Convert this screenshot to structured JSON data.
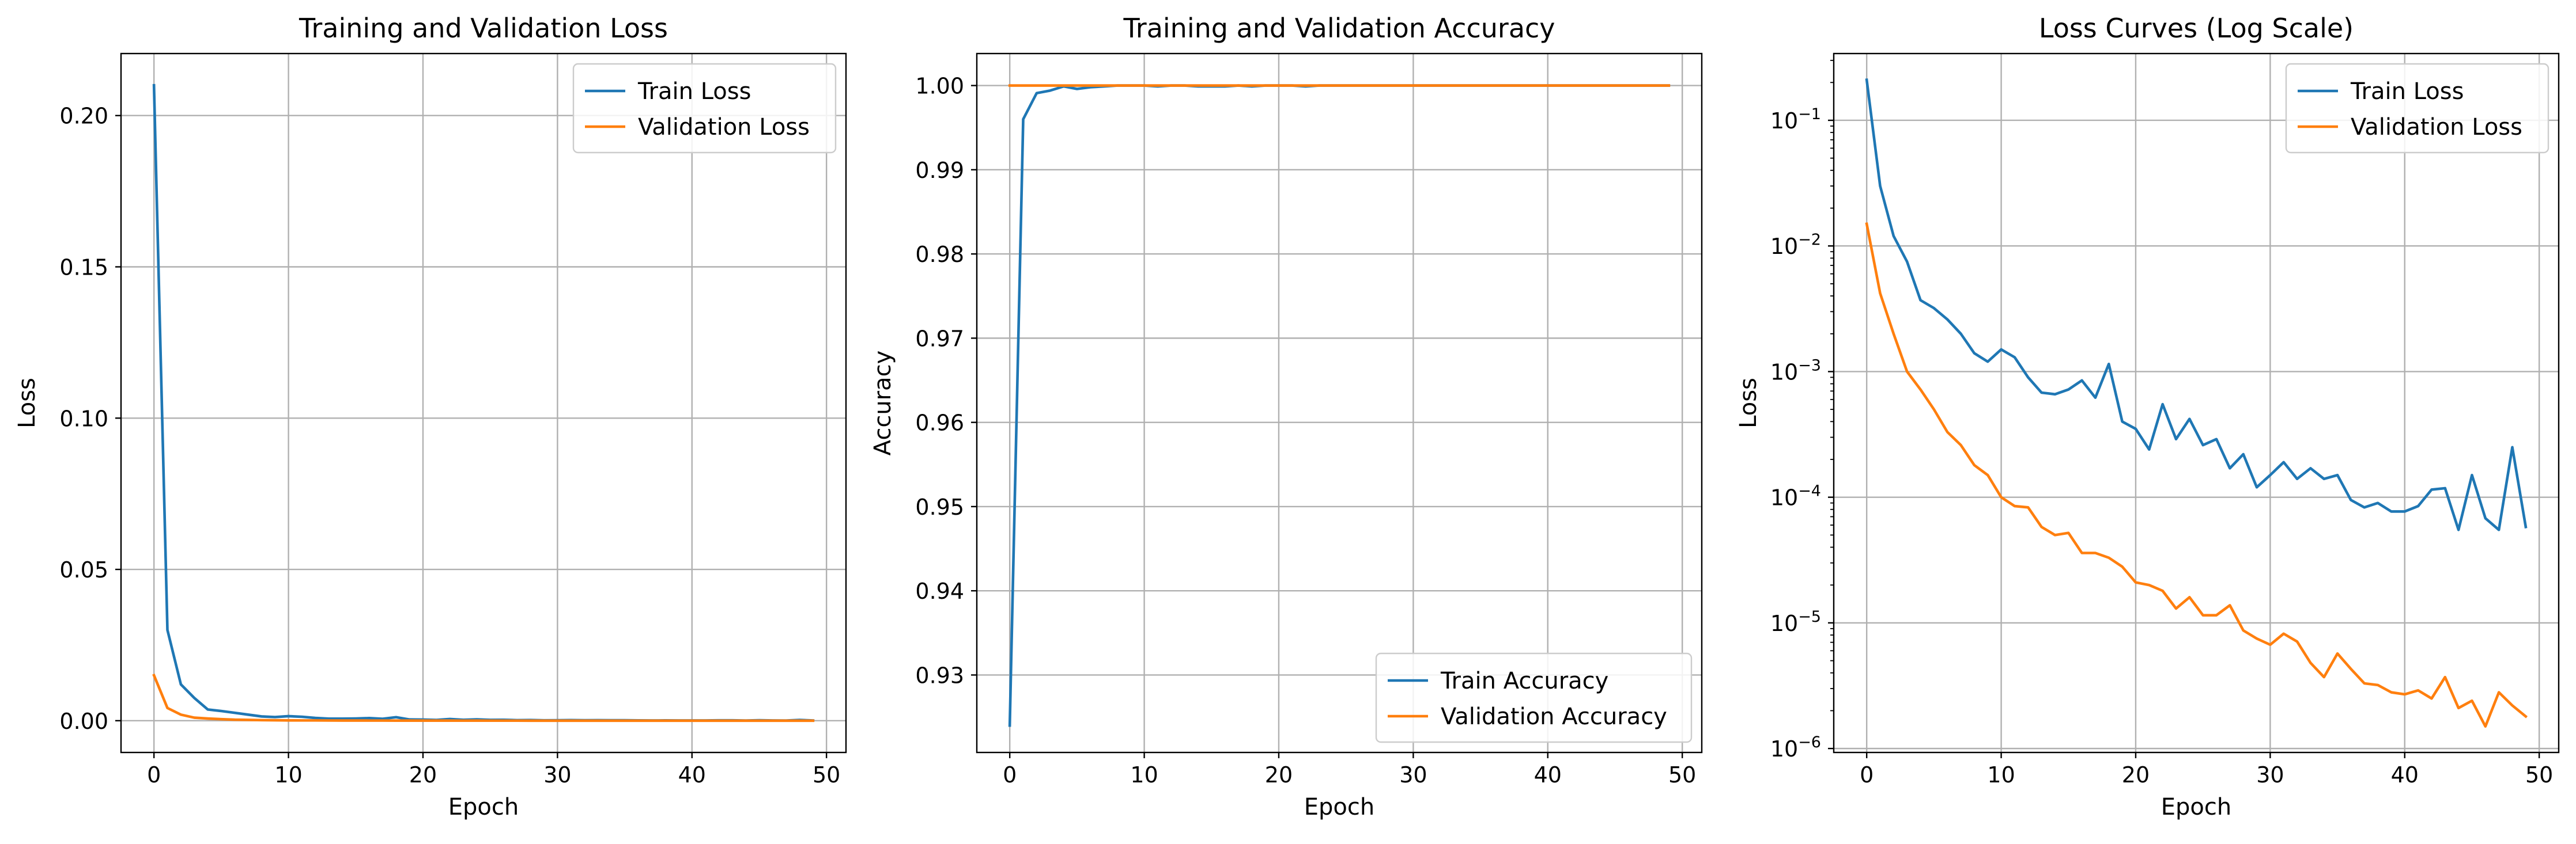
{
  "colors": {
    "train": "#1f77b4",
    "validation": "#ff7f0e",
    "grid": "#b0b0b0",
    "axes": "#000000",
    "legend_border": "#cccccc"
  },
  "chart_data": [
    {
      "type": "line",
      "title": "Training and Validation Loss",
      "xlabel": "Epoch",
      "ylabel": "Loss",
      "xlim": [
        -2.45,
        51.45
      ],
      "ylim": [
        -0.0105,
        0.2205
      ],
      "xticks": [
        0,
        10,
        20,
        30,
        40,
        50
      ],
      "xtick_labels": [
        "0",
        "10",
        "20",
        "30",
        "40",
        "50"
      ],
      "yticks": [
        0,
        0.05,
        0.1,
        0.15,
        0.2
      ],
      "ytick_labels": [
        "0.00",
        "0.05",
        "0.10",
        "0.15",
        "0.20"
      ],
      "yscale": "linear",
      "grid": true,
      "legend_position": "upper right",
      "x": [
        0,
        1,
        2,
        3,
        4,
        5,
        6,
        7,
        8,
        9,
        10,
        11,
        12,
        13,
        14,
        15,
        16,
        17,
        18,
        19,
        20,
        21,
        22,
        23,
        24,
        25,
        26,
        27,
        28,
        29,
        30,
        31,
        32,
        33,
        34,
        35,
        36,
        37,
        38,
        39,
        40,
        41,
        42,
        43,
        44,
        45,
        46,
        47,
        48,
        49
      ],
      "series": [
        {
          "name": "Train Loss",
          "color_key": "train",
          "values": [
            0.21,
            0.03,
            0.012,
            0.0075,
            0.0037,
            0.0032,
            0.0026,
            0.002,
            0.0014,
            0.0012,
            0.0015,
            0.0013,
            0.0009,
            0.00068,
            0.00066,
            0.00072,
            0.00085,
            0.00062,
            0.00115,
            0.0004,
            0.00035,
            0.00024,
            0.00055,
            0.00029,
            0.00042,
            0.00026,
            0.00029,
            0.00017,
            0.00022,
            0.00012,
            0.00015,
            0.00019,
            0.00014,
            0.00017,
            0.00014,
            0.00015,
            9.5e-05,
            8.3e-05,
            9e-05,
            7.7e-05,
            7.7e-05,
            8.5e-05,
            0.000115,
            0.000118,
            5.5e-05,
            0.00015,
            6.8e-05,
            5.5e-05,
            0.00025,
            5.8e-05
          ]
        },
        {
          "name": "Validation Loss",
          "color_key": "validation",
          "values": [
            0.015,
            0.0042,
            0.002,
            0.001,
            0.00072,
            0.0005,
            0.00033,
            0.00026,
            0.00018,
            0.00015,
            0.0001,
            8.5e-05,
            8.3e-05,
            5.8e-05,
            5e-05,
            5.2e-05,
            3.6e-05,
            3.6e-05,
            3.3e-05,
            2.8e-05,
            2.1e-05,
            2e-05,
            1.8e-05,
            1.3e-05,
            1.6e-05,
            1.15e-05,
            1.15e-05,
            1.38e-05,
            8.7e-06,
            7.5e-06,
            6.7e-06,
            8.2e-06,
            7.1e-06,
            4.8e-06,
            3.7e-06,
            5.7e-06,
            4.3e-06,
            3.3e-06,
            3.2e-06,
            2.8e-06,
            2.7e-06,
            2.9e-06,
            2.5e-06,
            3.7e-06,
            2.1e-06,
            2.4e-06,
            1.5e-06,
            2.8e-06,
            2.2e-06,
            1.8e-06
          ]
        }
      ]
    },
    {
      "type": "line",
      "title": "Training and Validation Accuracy",
      "xlabel": "Epoch",
      "ylabel": "Accuracy",
      "xlim": [
        -2.45,
        51.45
      ],
      "ylim": [
        0.9208,
        1.0038
      ],
      "xticks": [
        0,
        10,
        20,
        30,
        40,
        50
      ],
      "xtick_labels": [
        "0",
        "10",
        "20",
        "30",
        "40",
        "50"
      ],
      "yticks": [
        0.93,
        0.94,
        0.95,
        0.96,
        0.97,
        0.98,
        0.99,
        1.0
      ],
      "ytick_labels": [
        "0.93",
        "0.94",
        "0.95",
        "0.96",
        "0.97",
        "0.98",
        "0.99",
        "1.00"
      ],
      "yscale": "linear",
      "grid": true,
      "legend_position": "lower right",
      "x": [
        0,
        1,
        2,
        3,
        4,
        5,
        6,
        7,
        8,
        9,
        10,
        11,
        12,
        13,
        14,
        15,
        16,
        17,
        18,
        19,
        20,
        21,
        22,
        23,
        24,
        25,
        26,
        27,
        28,
        29,
        30,
        31,
        32,
        33,
        34,
        35,
        36,
        37,
        38,
        39,
        40,
        41,
        42,
        43,
        44,
        45,
        46,
        47,
        48,
        49
      ],
      "series": [
        {
          "name": "Train Accuracy",
          "color_key": "train",
          "values": [
            0.924,
            0.996,
            0.9991,
            0.9994,
            0.9999,
            0.9996,
            0.9998,
            0.9999,
            1.0,
            1.0,
            1.0,
            0.9999,
            1.0,
            1.0,
            0.9999,
            0.9999,
            0.9999,
            1.0,
            0.9999,
            1.0,
            1.0,
            1.0,
            0.9999,
            1.0,
            1.0,
            1.0,
            1.0,
            1.0,
            1.0,
            1.0,
            1.0,
            1.0,
            1.0,
            1.0,
            1.0,
            1.0,
            1.0,
            1.0,
            1.0,
            1.0,
            1.0,
            1.0,
            1.0,
            1.0,
            1.0,
            1.0,
            1.0,
            1.0,
            1.0,
            1.0
          ]
        },
        {
          "name": "Validation Accuracy",
          "color_key": "validation",
          "values": [
            1.0,
            1.0,
            1.0,
            1.0,
            1.0,
            1.0,
            1.0,
            1.0,
            1.0,
            1.0,
            1.0,
            1.0,
            1.0,
            1.0,
            1.0,
            1.0,
            1.0,
            1.0,
            1.0,
            1.0,
            1.0,
            1.0,
            1.0,
            1.0,
            1.0,
            1.0,
            1.0,
            1.0,
            1.0,
            1.0,
            1.0,
            1.0,
            1.0,
            1.0,
            1.0,
            1.0,
            1.0,
            1.0,
            1.0,
            1.0,
            1.0,
            1.0,
            1.0,
            1.0,
            1.0,
            1.0,
            1.0,
            1.0,
            1.0,
            1.0
          ]
        }
      ]
    },
    {
      "type": "line",
      "title": "Loss Curves (Log Scale)",
      "xlabel": "Epoch",
      "ylabel": "Loss",
      "xlim": [
        -2.45,
        51.45
      ],
      "ylim": [
        9.3e-07,
        0.34
      ],
      "xticks": [
        0,
        10,
        20,
        30,
        40,
        50
      ],
      "xtick_labels": [
        "0",
        "10",
        "20",
        "30",
        "40",
        "50"
      ],
      "yticks": [
        1e-06,
        1e-05,
        0.0001,
        0.001,
        0.01,
        0.1
      ],
      "ytick_labels": [
        [
          "10",
          "−6"
        ],
        [
          "10",
          "−5"
        ],
        [
          "10",
          "−4"
        ],
        [
          "10",
          "−3"
        ],
        [
          "10",
          "−2"
        ],
        [
          "10",
          "−1"
        ]
      ],
      "yscale": "log",
      "grid": true,
      "legend_position": "upper right",
      "x": [
        0,
        1,
        2,
        3,
        4,
        5,
        6,
        7,
        8,
        9,
        10,
        11,
        12,
        13,
        14,
        15,
        16,
        17,
        18,
        19,
        20,
        21,
        22,
        23,
        24,
        25,
        26,
        27,
        28,
        29,
        30,
        31,
        32,
        33,
        34,
        35,
        36,
        37,
        38,
        39,
        40,
        41,
        42,
        43,
        44,
        45,
        46,
        47,
        48,
        49
      ],
      "series": [
        {
          "name": "Train Loss",
          "color_key": "train",
          "values": [
            0.21,
            0.03,
            0.012,
            0.0075,
            0.0037,
            0.0032,
            0.0026,
            0.002,
            0.0014,
            0.0012,
            0.0015,
            0.0013,
            0.0009,
            0.00068,
            0.00066,
            0.00072,
            0.00085,
            0.00062,
            0.00115,
            0.0004,
            0.00035,
            0.00024,
            0.00055,
            0.00029,
            0.00042,
            0.00026,
            0.00029,
            0.00017,
            0.00022,
            0.00012,
            0.00015,
            0.00019,
            0.00014,
            0.00017,
            0.00014,
            0.00015,
            9.5e-05,
            8.3e-05,
            9e-05,
            7.7e-05,
            7.7e-05,
            8.5e-05,
            0.000115,
            0.000118,
            5.5e-05,
            0.00015,
            6.8e-05,
            5.5e-05,
            0.00025,
            5.8e-05
          ]
        },
        {
          "name": "Validation Loss",
          "color_key": "validation",
          "values": [
            0.015,
            0.0042,
            0.002,
            0.001,
            0.00072,
            0.0005,
            0.00033,
            0.00026,
            0.00018,
            0.00015,
            0.0001,
            8.5e-05,
            8.3e-05,
            5.8e-05,
            5e-05,
            5.2e-05,
            3.6e-05,
            3.6e-05,
            3.3e-05,
            2.8e-05,
            2.1e-05,
            2e-05,
            1.8e-05,
            1.3e-05,
            1.6e-05,
            1.15e-05,
            1.15e-05,
            1.38e-05,
            8.7e-06,
            7.5e-06,
            6.7e-06,
            8.2e-06,
            7.1e-06,
            4.8e-06,
            3.7e-06,
            5.7e-06,
            4.3e-06,
            3.3e-06,
            3.2e-06,
            2.8e-06,
            2.7e-06,
            2.9e-06,
            2.5e-06,
            3.7e-06,
            2.1e-06,
            2.4e-06,
            1.5e-06,
            2.8e-06,
            2.2e-06,
            1.8e-06
          ]
        }
      ]
    }
  ]
}
